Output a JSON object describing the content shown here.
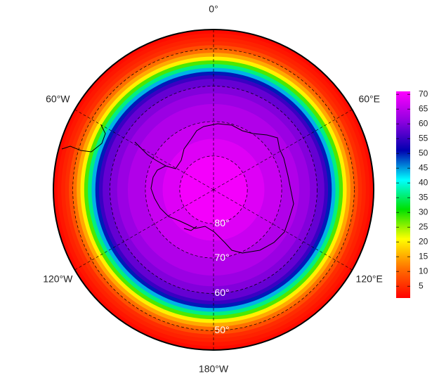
{
  "map": {
    "boundary_lat": 45,
    "lon_labels": [
      {
        "value": 0,
        "label": "0°"
      },
      {
        "value": 60,
        "label": "60°E"
      },
      {
        "value": 120,
        "label": "120°E"
      },
      {
        "value": 180,
        "label": "180°W"
      },
      {
        "value": -120,
        "label": "120°W"
      },
      {
        "value": -60,
        "label": "60°W"
      }
    ],
    "lat_labels": [
      {
        "value": 80,
        "label": "80°"
      },
      {
        "value": 70,
        "label": "70°"
      },
      {
        "value": 60,
        "label": "60°"
      },
      {
        "value": 50,
        "label": "50°"
      }
    ],
    "field": {
      "lat": [
        45,
        46,
        47,
        48,
        49,
        50,
        51,
        52,
        53,
        54,
        55,
        56,
        57,
        58,
        60,
        62,
        65,
        70,
        75,
        80,
        90
      ],
      "values": [
        2,
        3,
        4,
        5,
        8,
        11,
        15,
        20,
        28,
        36,
        44,
        50,
        55,
        58,
        60,
        62,
        64,
        66,
        68,
        70,
        70
      ]
    },
    "colorbar": {
      "lim": [
        1,
        71
      ],
      "ticks": [
        5,
        10,
        15,
        20,
        25,
        30,
        35,
        40,
        45,
        50,
        55,
        60,
        65,
        70
      ],
      "colors": [
        "#ff0000",
        "#ff7000",
        "#ffff00",
        "#00e000",
        "#00ffff",
        "#0000b0",
        "#9000e0",
        "#ff00ff"
      ]
    }
  }
}
